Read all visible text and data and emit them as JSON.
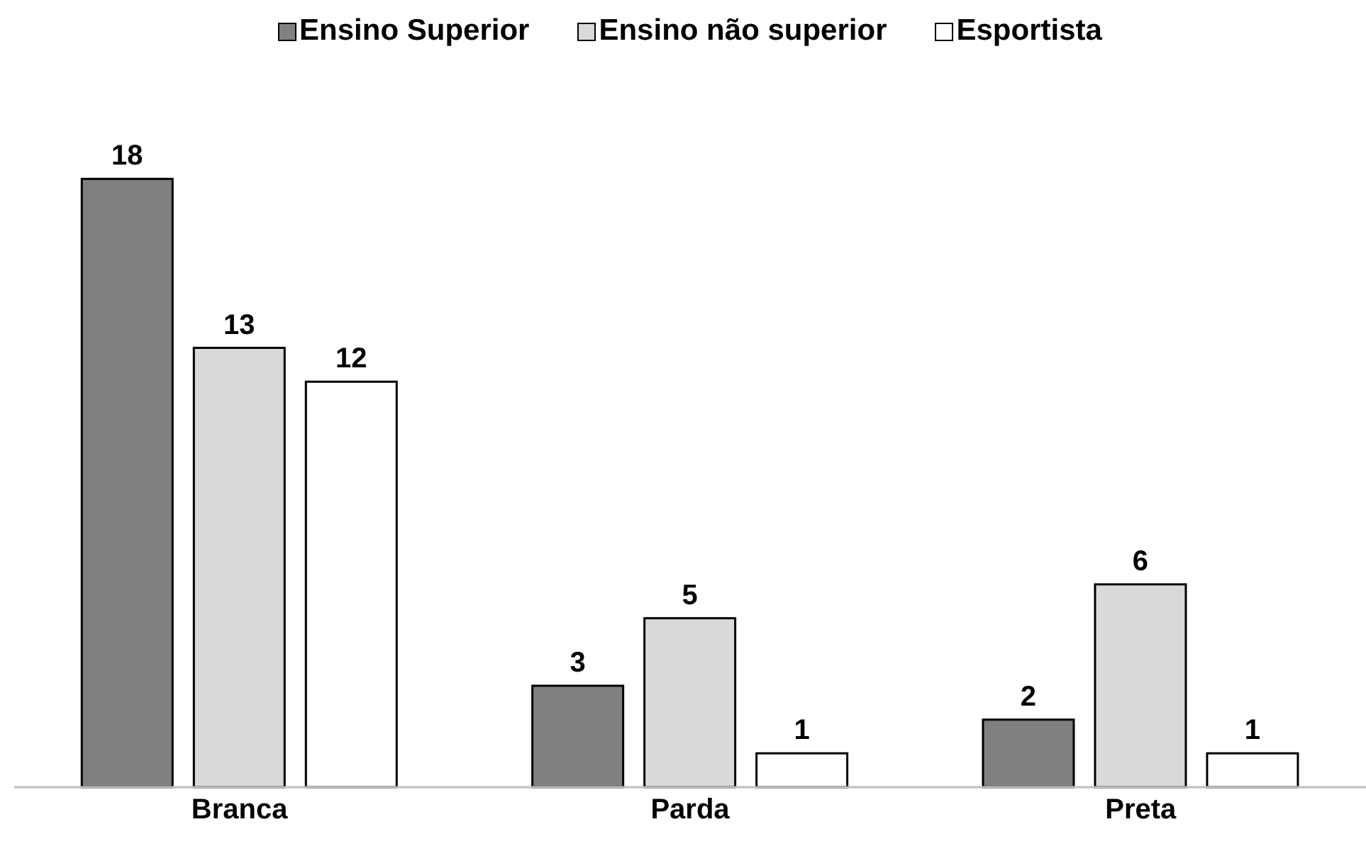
{
  "chart_data": {
    "type": "bar",
    "categories": [
      "Branca",
      "Parda",
      "Preta"
    ],
    "series": [
      {
        "name": "Ensino Superior",
        "color": "#808080",
        "values": [
          18,
          3,
          2
        ]
      },
      {
        "name": "Ensino não superior",
        "color": "#d9d9d9",
        "values": [
          13,
          5,
          6
        ]
      },
      {
        "name": "Esportista",
        "color": "#ffffff",
        "values": [
          12,
          1,
          1
        ]
      }
    ],
    "data_labels": true,
    "legend": "top",
    "grid": false
  }
}
